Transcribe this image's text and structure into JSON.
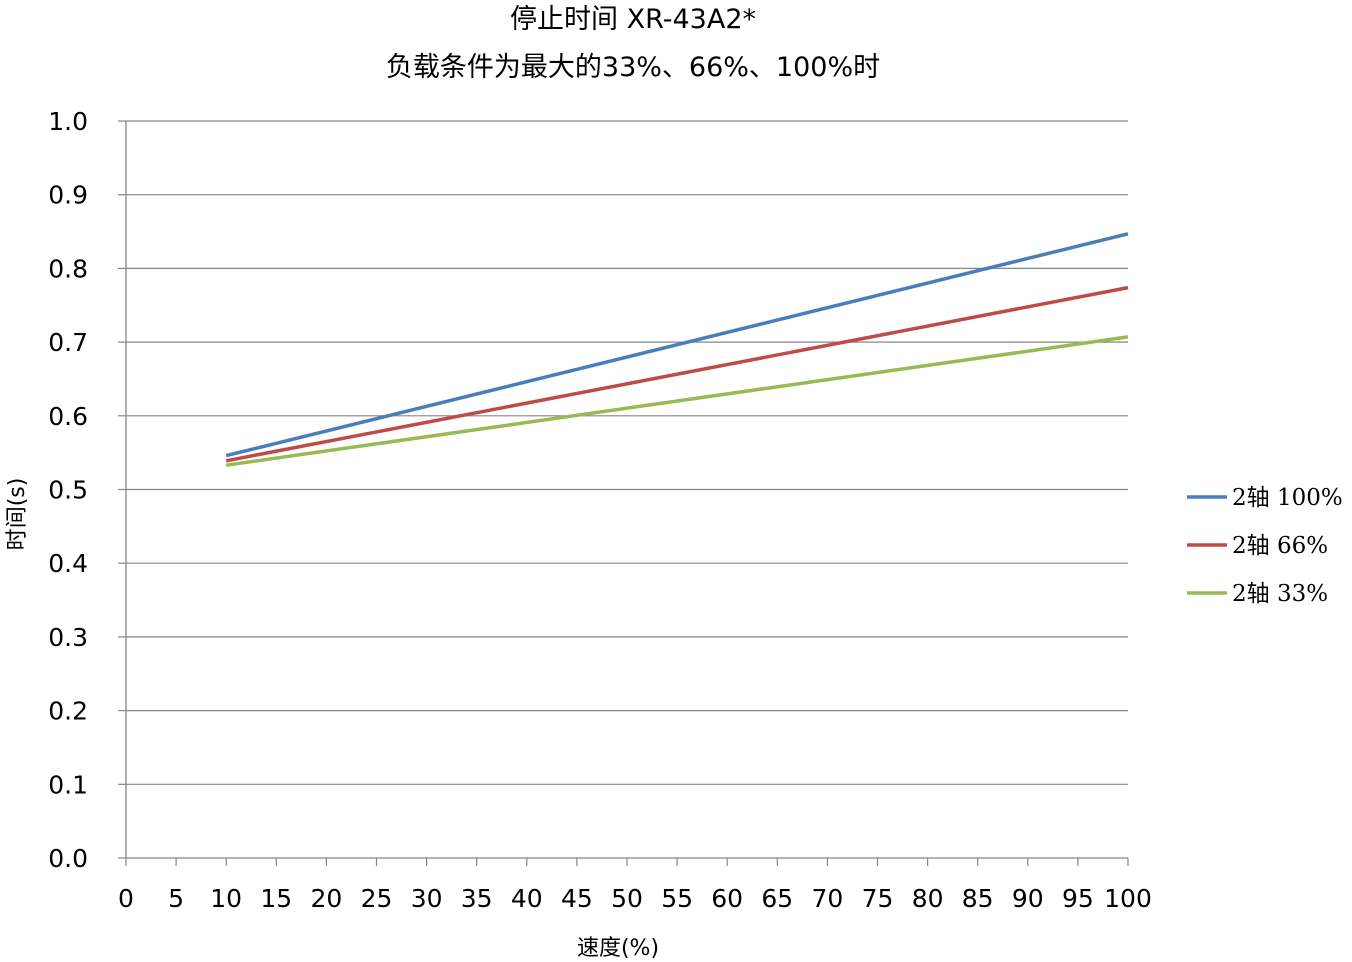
{
  "chart_data": {
    "type": "line",
    "title_line1": "停止时间 XR-43A2*",
    "title_line2": "负载条件为最大的33%、66%、100%时",
    "xlabel": "速度(%)",
    "ylabel": "时间(s)",
    "xlim": [
      0,
      100
    ],
    "ylim": [
      0.0,
      1.0
    ],
    "x_ticks": [
      "0",
      "5",
      "10",
      "15",
      "20",
      "25",
      "30",
      "35",
      "40",
      "45",
      "50",
      "55",
      "60",
      "65",
      "70",
      "75",
      "80",
      "85",
      "90",
      "95",
      "100"
    ],
    "y_ticks": [
      "0.0",
      "0.1",
      "0.2",
      "0.3",
      "0.4",
      "0.5",
      "0.6",
      "0.7",
      "0.8",
      "0.9",
      "1.0"
    ],
    "grid": "horizontal",
    "legend_position": "right",
    "series": [
      {
        "name": "2轴 100%",
        "color": "#4a7ebb",
        "x": [
          10,
          100
        ],
        "y": [
          0.546,
          0.847
        ]
      },
      {
        "name": "2轴 66%",
        "color": "#be4b48",
        "x": [
          10,
          100
        ],
        "y": [
          0.539,
          0.774
        ]
      },
      {
        "name": "2轴 33%",
        "color": "#98b954",
        "x": [
          10,
          100
        ],
        "y": [
          0.533,
          0.707
        ]
      }
    ]
  }
}
